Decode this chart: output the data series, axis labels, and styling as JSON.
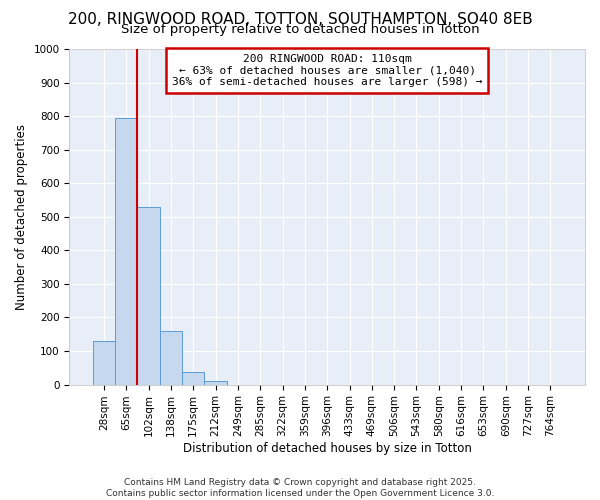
{
  "title1": "200, RINGWOOD ROAD, TOTTON, SOUTHAMPTON, SO40 8EB",
  "title2": "Size of property relative to detached houses in Totton",
  "xlabel": "Distribution of detached houses by size in Totton",
  "ylabel": "Number of detached properties",
  "bar_labels": [
    "28sqm",
    "65sqm",
    "102sqm",
    "138sqm",
    "175sqm",
    "212sqm",
    "249sqm",
    "285sqm",
    "322sqm",
    "359sqm",
    "396sqm",
    "433sqm",
    "469sqm",
    "506sqm",
    "543sqm",
    "580sqm",
    "616sqm",
    "653sqm",
    "690sqm",
    "727sqm",
    "764sqm"
  ],
  "bar_values": [
    130,
    795,
    530,
    160,
    37,
    10,
    0,
    0,
    0,
    0,
    0,
    0,
    0,
    0,
    0,
    0,
    0,
    0,
    0,
    0,
    0
  ],
  "bar_color": "#c5d8ed",
  "bar_edgecolor": "#5b9bd5",
  "vline_x": 1.5,
  "vline_color": "#cc0000",
  "annotation_text": "200 RINGWOOD ROAD: 110sqm\n← 63% of detached houses are smaller (1,040)\n36% of semi-detached houses are larger (598) →",
  "annotation_box_facecolor": "#ffffff",
  "annotation_box_edgecolor": "#cc0000",
  "ylim": [
    0,
    1000
  ],
  "yticks": [
    0,
    100,
    200,
    300,
    400,
    500,
    600,
    700,
    800,
    900,
    1000
  ],
  "footer1": "Contains HM Land Registry data © Crown copyright and database right 2025.",
  "footer2": "Contains public sector information licensed under the Open Government Licence 3.0.",
  "fig_background": "#ffffff",
  "plot_background": "#e8eef8",
  "grid_color": "#ffffff",
  "title1_fontsize": 11,
  "title2_fontsize": 9.5,
  "axis_tick_fontsize": 7.5,
  "ylabel_fontsize": 8.5,
  "xlabel_fontsize": 8.5,
  "annotation_fontsize": 8,
  "footer_fontsize": 6.5
}
